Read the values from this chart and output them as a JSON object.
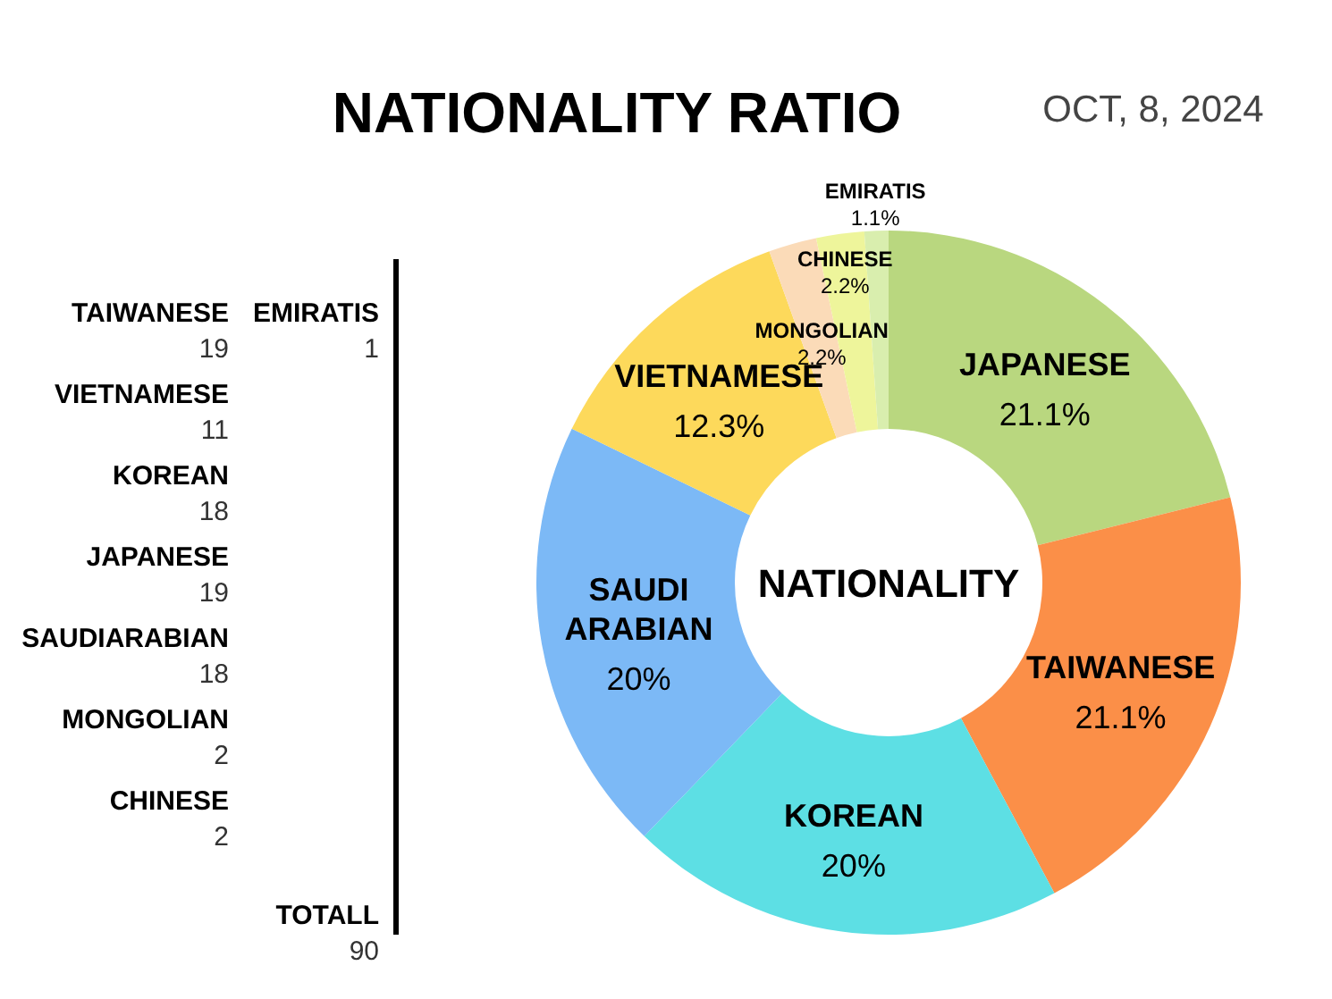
{
  "chart_data": [
    {
      "type": "donut",
      "title": "NATIONALITY RATIO",
      "subtitle": "OCT, 8, 2024",
      "annotations": [
        "NATIONALITY"
      ],
      "categories": [
        "JAPANESE",
        "TAIWANESE",
        "KOREAN",
        "SAUDI ARABIAN",
        "VIETNAMESE",
        "MONGOLIAN",
        "CHINESE",
        "EMIRATIS"
      ],
      "values": [
        21.1,
        21.1,
        20,
        20,
        12.3,
        2.2,
        2.2,
        1.1
      ],
      "value_labels": [
        "21.1%",
        "21.1%",
        "20%",
        "20%",
        "12.3%",
        "2.2%",
        "2.2%",
        "1.1%"
      ],
      "colors": [
        "#b9d77f",
        "#fb8f48",
        "#5ddfe4",
        "#7cb9f6",
        "#fdd95b",
        "#fbdbb8",
        "#eef59b",
        "#d9eeae"
      ]
    },
    {
      "type": "other",
      "annotations": [
        "TAIWANESE",
        "19",
        "EMIRATIS",
        "1",
        "VIETNAMESE",
        "11",
        "KOREAN",
        "18",
        "JAPANESE",
        "19",
        "SAUDIARABIAN",
        "18",
        "MONGOLIAN",
        "2",
        "CHINESE",
        "2",
        "TOTALL",
        "90"
      ]
    }
  ]
}
